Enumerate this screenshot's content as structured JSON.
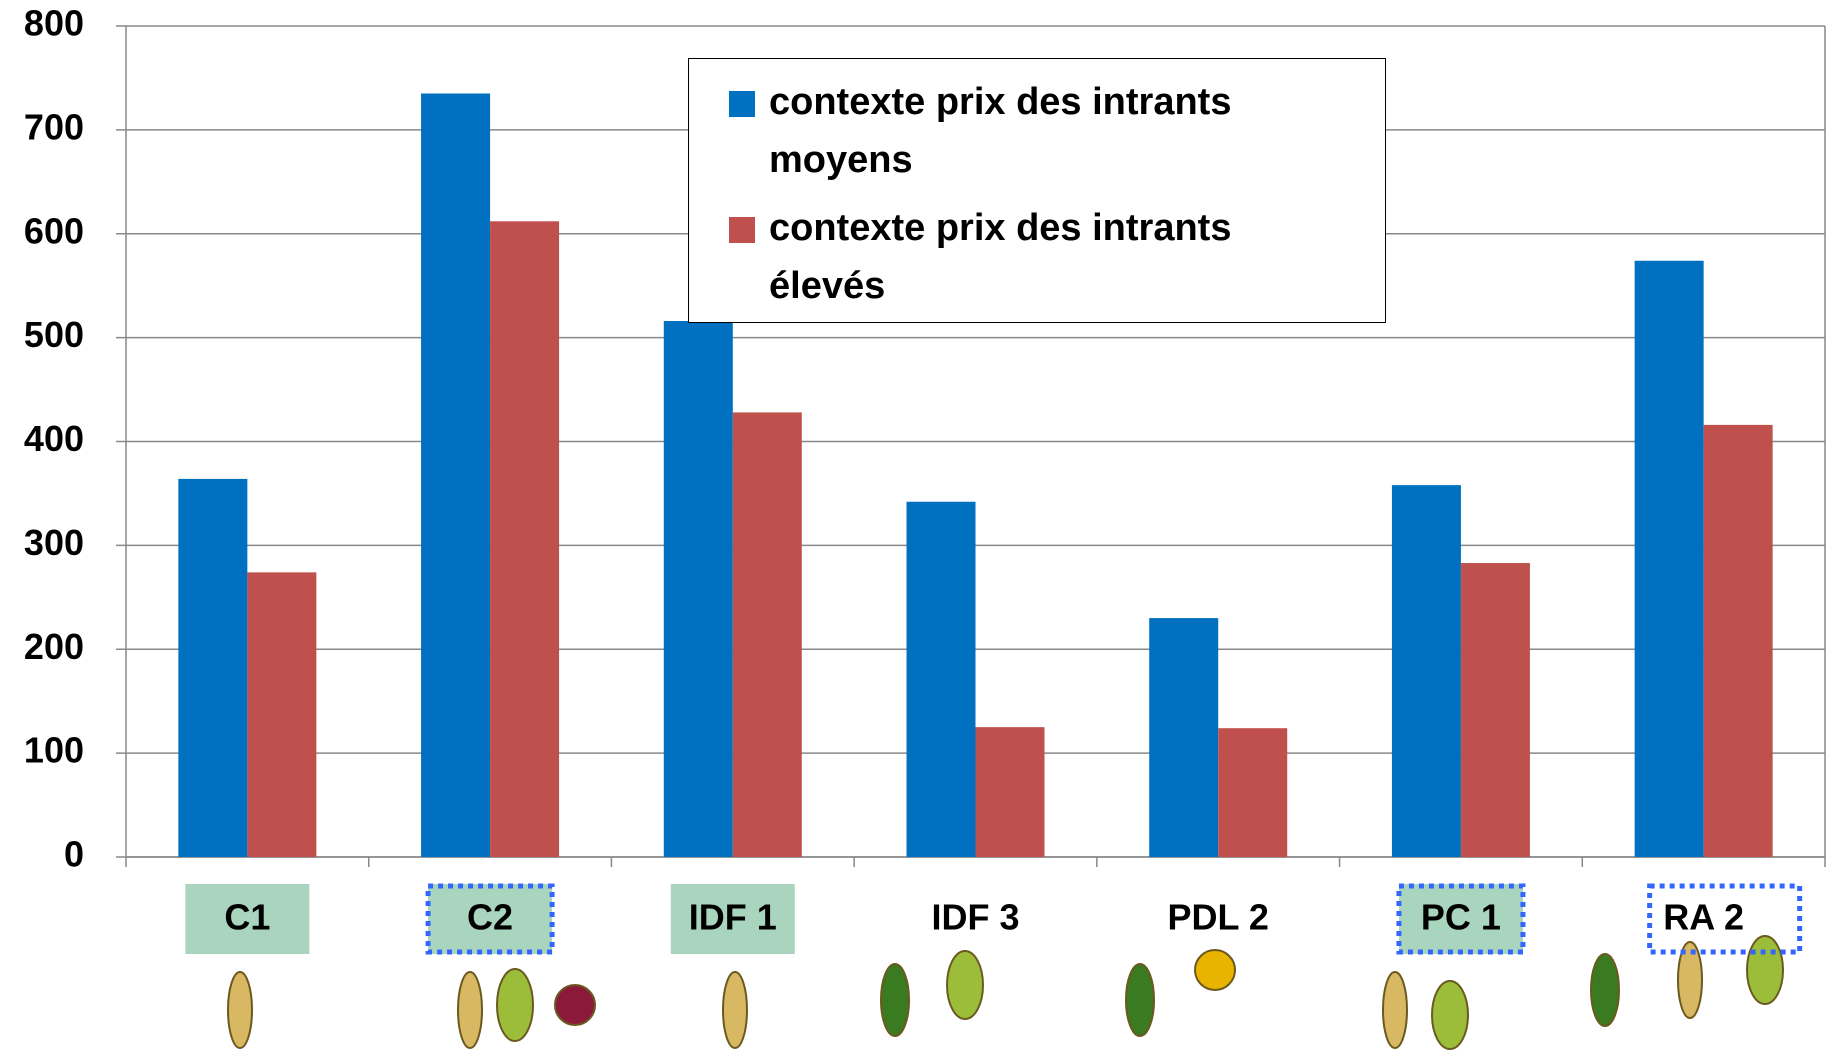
{
  "chart_data": {
    "type": "bar",
    "categories": [
      "C1",
      "C2",
      "IDF 1",
      "IDF 3",
      "PDL 2",
      "PC 1",
      "RA 2"
    ],
    "series": [
      {
        "name": "contexte prix des intrants moyens",
        "color": "#0070c0",
        "values": [
          364,
          735,
          516,
          342,
          230,
          358,
          574
        ]
      },
      {
        "name": "contexte prix des intrants élevés",
        "color": "#c0504d",
        "values": [
          274,
          612,
          428,
          125,
          124,
          283,
          416
        ]
      }
    ],
    "ylim": [
      0,
      800
    ],
    "yticks": [
      0,
      100,
      200,
      300,
      400,
      500,
      600,
      700,
      800
    ],
    "grid": true
  }
}
